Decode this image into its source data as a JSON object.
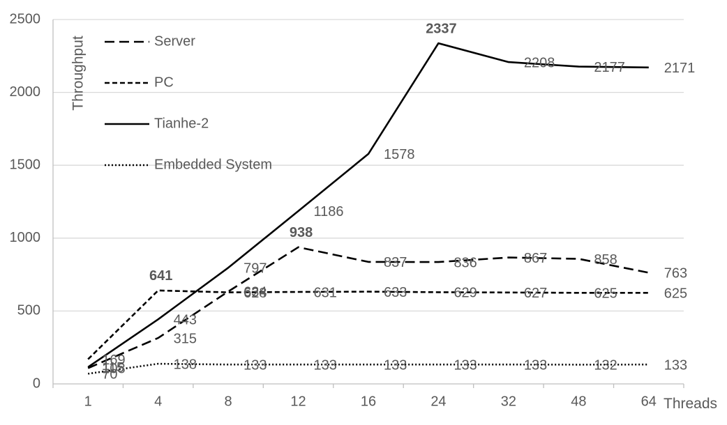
{
  "chart_data": {
    "type": "line",
    "ylabel": "Throughput",
    "xlabel": "Threads",
    "categories": [
      "1",
      "4",
      "8",
      "12",
      "16",
      "24",
      "32",
      "48",
      "64"
    ],
    "ylim": [
      0,
      2500
    ],
    "yticks": [
      0,
      500,
      1000,
      1500,
      2000,
      2500
    ],
    "grid": "horizontal",
    "legend_position": "top-left",
    "series": [
      {
        "name": "Server",
        "dash": "long-dash",
        "values": [
          108,
          315,
          634,
          938,
          837,
          836,
          867,
          858,
          763
        ],
        "bold_labels": [
          3
        ]
      },
      {
        "name": "PC",
        "dash": "short-dash",
        "values": [
          169,
          641,
          628,
          631,
          633,
          629,
          627,
          625,
          625
        ],
        "bold_labels": [
          1
        ]
      },
      {
        "name": "Tianhe-2",
        "dash": "solid",
        "values": [
          115,
          443,
          797,
          1186,
          1578,
          2337,
          2208,
          2177,
          2171
        ],
        "bold_labels": [
          5
        ]
      },
      {
        "name": "Embedded System",
        "dash": "dotted",
        "values": [
          70,
          138,
          133,
          133,
          133,
          133,
          133,
          132,
          133
        ],
        "bold_labels": []
      }
    ],
    "colors": {
      "line": "#000000",
      "grid": "#d9d9d9",
      "axis": "#bfbfbf",
      "text": "#595959"
    }
  }
}
